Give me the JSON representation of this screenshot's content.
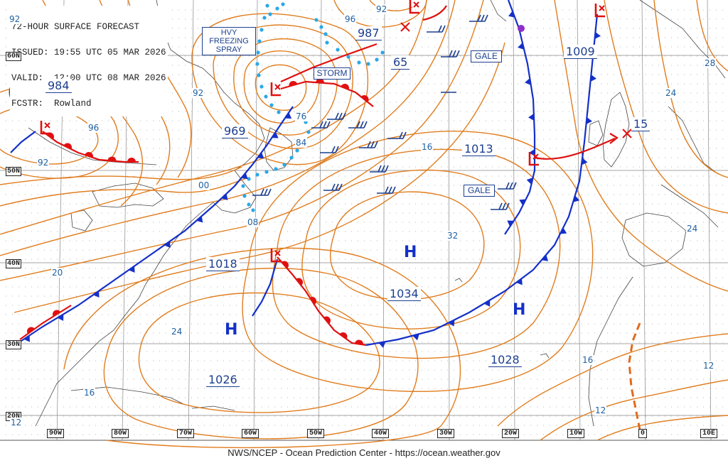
{
  "header": {
    "line1": "72-HOUR SURFACE FORECAST",
    "line2": "ISSUED: 19:55 UTC 05 MAR 2026",
    "line3": "VALID:  12:00 UTC 08 MAR 2026",
    "line4": "FCSTR:  Rowland"
  },
  "footer": "NWS/NCEP - Ocean Prediction Center - https://ocean.weather.gov",
  "latitudes": [
    "60N",
    "50N",
    "40N",
    "30N",
    "20N"
  ],
  "longitudes": [
    "90W",
    "80W",
    "70W",
    "60W",
    "50W",
    "40W",
    "30W",
    "20W",
    "10W",
    "0",
    "10E"
  ],
  "warnings": {
    "hvy_line1": "HVY",
    "hvy_line2": "FREEZING",
    "hvy_line3": "SPRAY",
    "storm": "STORM",
    "gale1": "GALE",
    "gale2": "GALE"
  },
  "pressure_labels": {
    "p984": "984",
    "p969": "969",
    "p987": "987",
    "p65": "65",
    "p1009": "1009",
    "p1013": "1013",
    "p15": "15",
    "p1018": "1018",
    "p1034": "1034",
    "p1028": "1028",
    "p1026": "1026"
  },
  "isobar_labels": {
    "i92a": "92",
    "i96a": "96",
    "i92b": "92",
    "i92c": "92",
    "i96b": "96",
    "i92d": "92",
    "i76": "76",
    "i84": "84",
    "i00": "00",
    "i08": "08",
    "i16a": "16",
    "i32": "32",
    "i24a": "24",
    "i28": "28",
    "i24b": "24",
    "i20": "20",
    "i24c": "24",
    "i16b": "16",
    "i16c": "16",
    "i12a": "12",
    "i12b": "12",
    "i12c": "12"
  },
  "centers": {
    "high": "H",
    "low": "L"
  },
  "colors": {
    "isobar": "#e07d1e",
    "cold_front": "#1430c8",
    "warm_front": "#e01010",
    "label": "#1c3f8f",
    "ice": "#2aa8e8",
    "occluded": "#9030c8"
  },
  "icons": [
    "noaa-logo-icon",
    "low-center-icon",
    "high-center-icon",
    "wind-barb-icon"
  ]
}
